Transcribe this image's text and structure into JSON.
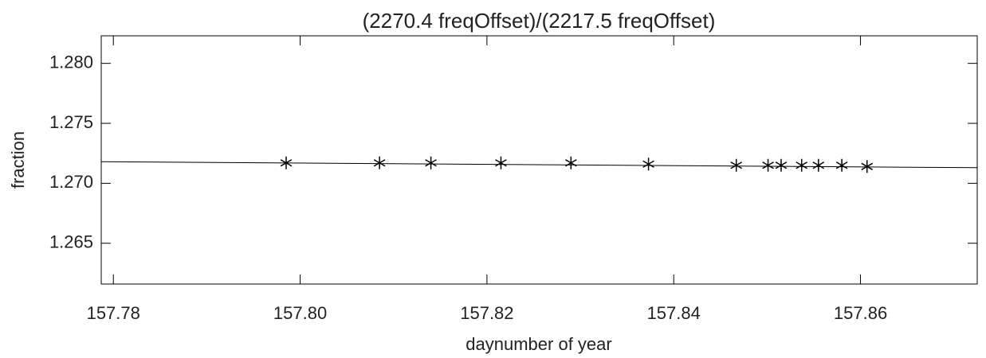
{
  "chart_data": {
    "type": "scatter",
    "title": "(2270.4 freqOffset)/(2217.5 freqOffset)",
    "xlabel": "daynumber of year",
    "ylabel": "fraction",
    "x": [
      157.7985,
      157.8085,
      157.814,
      157.8215,
      157.829,
      157.8373,
      157.8467,
      157.8501,
      157.8515,
      157.8537,
      157.8555,
      157.858,
      157.8607
    ],
    "series": [
      {
        "color": "#000000",
        "marker": "asterisk",
        "values": [
          1.2717,
          1.2717,
          1.2717,
          1.2717,
          1.2717,
          1.2716,
          1.2715,
          1.2715,
          1.2715,
          1.2715,
          1.2715,
          1.2715,
          1.2714
        ]
      },
      {
        "color": "#000000",
        "marker": "line",
        "x": [
          157.7787,
          157.8725
        ],
        "values": [
          1.2718,
          1.2713
        ]
      }
    ],
    "xlim": [
      157.7787,
      157.8725
    ],
    "xticks": [
      {
        "value": 157.78,
        "label": "157.78"
      },
      {
        "value": 157.8,
        "label": "157.80"
      },
      {
        "value": 157.82,
        "label": "157.82"
      },
      {
        "value": 157.84,
        "label": "157.84"
      },
      {
        "value": 157.86,
        "label": "157.86"
      }
    ],
    "ylim": [
      1.2616,
      1.2823
    ],
    "yticks": [
      {
        "value": 1.265,
        "label": "1.265"
      },
      {
        "value": 1.27,
        "label": "1.270"
      },
      {
        "value": 1.275,
        "label": "1.275"
      },
      {
        "value": 1.28,
        "label": "1.280"
      }
    ],
    "grid": false
  }
}
